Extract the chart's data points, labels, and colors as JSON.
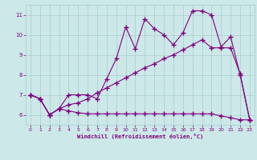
{
  "xlabel": "Windchill (Refroidissement éolien,°C)",
  "background_color": "#cce8e8",
  "grid_color": "#aacccc",
  "line_color": "#800080",
  "xlim": [
    -0.5,
    23.5
  ],
  "ylim": [
    5.5,
    11.5
  ],
  "yticks": [
    6,
    7,
    8,
    9,
    10,
    11
  ],
  "xticks": [
    0,
    1,
    2,
    3,
    4,
    5,
    6,
    7,
    8,
    9,
    10,
    11,
    12,
    13,
    14,
    15,
    16,
    17,
    18,
    19,
    20,
    21,
    22,
    23
  ],
  "series1_x": [
    0,
    1,
    2,
    3,
    4,
    5,
    6,
    7,
    8,
    9,
    10,
    11,
    12,
    13,
    14,
    15,
    16,
    17,
    18,
    19,
    20,
    21,
    22,
    23
  ],
  "series1_y": [
    7.0,
    6.8,
    6.0,
    6.3,
    7.0,
    7.0,
    7.0,
    6.8,
    7.8,
    8.8,
    10.4,
    9.3,
    10.8,
    10.3,
    10.0,
    9.5,
    10.1,
    11.2,
    11.2,
    11.0,
    9.4,
    9.9,
    8.0,
    5.75
  ],
  "series2_x": [
    0,
    1,
    2,
    3,
    4,
    5,
    6,
    7,
    8,
    9,
    10,
    11,
    12,
    13,
    14,
    15,
    16,
    17,
    18,
    19,
    20,
    21,
    22,
    23
  ],
  "series2_y": [
    7.0,
    6.8,
    6.0,
    6.3,
    6.5,
    6.6,
    6.8,
    7.1,
    7.35,
    7.6,
    7.85,
    8.1,
    8.35,
    8.55,
    8.8,
    9.0,
    9.25,
    9.5,
    9.75,
    9.35,
    9.35,
    9.35,
    8.05,
    5.75
  ],
  "series3_x": [
    0,
    1,
    2,
    3,
    4,
    5,
    6,
    7,
    8,
    9,
    10,
    11,
    12,
    13,
    14,
    15,
    16,
    17,
    18,
    19,
    20,
    21,
    22,
    23
  ],
  "series3_y": [
    7.0,
    6.8,
    6.0,
    6.3,
    6.2,
    6.1,
    6.05,
    6.05,
    6.05,
    6.05,
    6.05,
    6.05,
    6.05,
    6.05,
    6.05,
    6.05,
    6.05,
    6.05,
    6.05,
    6.05,
    5.95,
    5.85,
    5.75,
    5.75
  ]
}
